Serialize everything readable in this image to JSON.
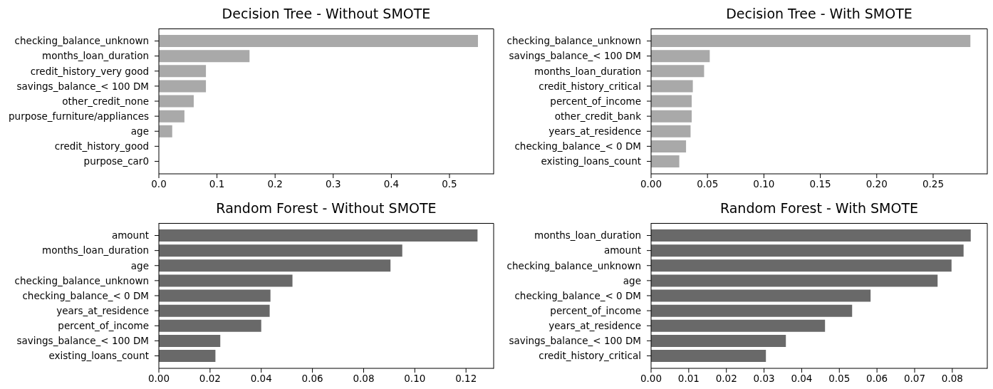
{
  "chart_data": [
    {
      "type": "bar",
      "orientation": "horizontal",
      "title": "Decision Tree - Without SMOTE",
      "categories": [
        "checking_balance_unknown",
        "months_loan_duration",
        "credit_history_very good",
        "savings_balance_< 100 DM",
        "other_credit_none",
        "purpose_furniture/appliances",
        "age",
        "credit_history_good",
        "purpose_car0"
      ],
      "values": [
        0.549,
        0.156,
        0.081,
        0.081,
        0.06,
        0.044,
        0.023,
        0,
        0
      ],
      "color": "#a9a9a9",
      "xlim": [
        0,
        0.576
      ],
      "xticks": [
        {
          "value": 0,
          "label": "0.0"
        },
        0.1,
        0.2,
        0.3,
        0.4,
        0.5
      ]
    },
    {
      "type": "bar",
      "orientation": "horizontal",
      "title": "Decision Tree - With SMOTE",
      "categories": [
        "checking_balance_unknown",
        "savings_balance_< 100 DM",
        "months_loan_duration",
        "credit_history_critical",
        "percent_of_income",
        "other_credit_bank",
        "years_at_residence",
        "checking_balance_< 0 DM",
        "existing_loans_count"
      ],
      "values": [
        0.283,
        0.052,
        0.047,
        0.037,
        0.036,
        0.036,
        0.035,
        0.031,
        0.025
      ],
      "color": "#a9a9a9",
      "xlim": [
        0,
        0.298
      ],
      "xticks": [
        {
          "value": 0,
          "label": "0.00"
        },
        0.05,
        {
          "value": 0.1,
          "label": "0.10"
        },
        0.15,
        {
          "value": 0.2,
          "label": "0.20"
        },
        0.25
      ]
    },
    {
      "type": "bar",
      "orientation": "horizontal",
      "title": "Random Forest - Without SMOTE",
      "categories": [
        "amount",
        "months_loan_duration",
        "age",
        "checking_balance_unknown",
        "checking_balance_< 0 DM",
        "years_at_residence",
        "percent_of_income",
        "savings_balance_< 100 DM",
        "existing_loans_count"
      ],
      "values": [
        0.1245,
        0.0951,
        0.0905,
        0.0522,
        0.0436,
        0.0433,
        0.04,
        0.024,
        0.0221
      ],
      "color": "#696969",
      "xlim": [
        0,
        0.1308
      ],
      "xticks": [
        {
          "value": 0,
          "label": "0.00"
        },
        0.02,
        0.04,
        0.06,
        0.08,
        {
          "value": 0.1,
          "label": "0.10"
        },
        0.12
      ]
    },
    {
      "type": "bar",
      "orientation": "horizontal",
      "title": "Random Forest - With SMOTE",
      "categories": [
        "months_loan_duration",
        "amount",
        "checking_balance_unknown",
        "age",
        "checking_balance_< 0 DM",
        "percent_of_income",
        "years_at_residence",
        "savings_balance_< 100 DM",
        "credit_history_critical"
      ],
      "values": [
        0.0849,
        0.083,
        0.0798,
        0.0761,
        0.0583,
        0.0534,
        0.0462,
        0.0358,
        0.0305
      ],
      "color": "#696969",
      "xlim": [
        0,
        0.0893
      ],
      "xticks": [
        {
          "value": 0,
          "label": "0.00"
        },
        0.01,
        0.02,
        0.03,
        0.04,
        0.05,
        0.06,
        0.07,
        0.08
      ]
    }
  ]
}
